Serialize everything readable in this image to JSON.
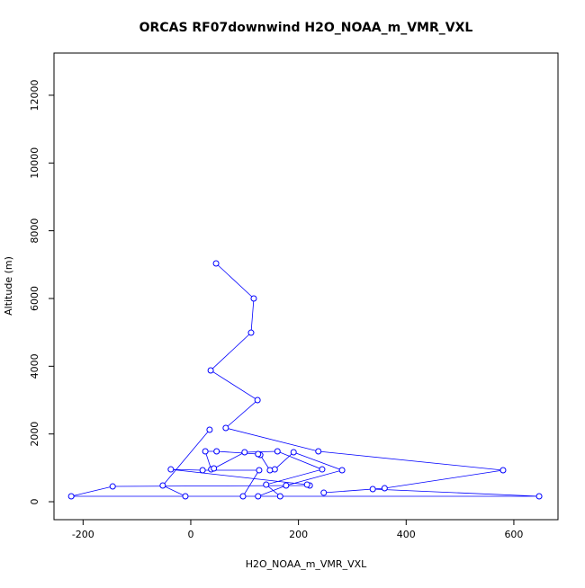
{
  "chart_data": {
    "type": "line",
    "title": "ORCAS RF07downwind H2O_NOAA_m_VMR_VXL",
    "x_label": "H2O_NOAA_m_VMR_VXL",
    "y_label": "Altitude (m)",
    "color": "#0000ff",
    "x": [
      47,
      117,
      112,
      37,
      124,
      65,
      237,
      580,
      360,
      247,
      338,
      647,
      -222,
      -145,
      221,
      216,
      -37,
      22,
      127,
      97,
      125,
      177,
      281,
      191,
      156,
      147,
      129,
      125,
      48,
      27,
      38,
      43,
      100,
      161,
      244,
      140,
      166,
      -10,
      -52,
      35
    ],
    "values": [
      7035,
      6000,
      4990,
      3876,
      3000,
      2177,
      1487,
      930,
      398,
      265,
      372,
      160,
      160,
      451,
      478,
      504,
      955,
      930,
      930,
      160,
      160,
      478,
      930,
      1460,
      955,
      930,
      1380,
      1407,
      1487,
      1487,
      955,
      982,
      1460,
      1487,
      955,
      504,
      160,
      160,
      478,
      2124
    ],
    "xlim": [
      -254,
      682
    ],
    "ylim": [
      -530,
      13246
    ],
    "xticks": [
      -200,
      0,
      200,
      400,
      600
    ],
    "yticks": [
      0,
      2000,
      4000,
      6000,
      8000,
      10000,
      12000
    ]
  }
}
